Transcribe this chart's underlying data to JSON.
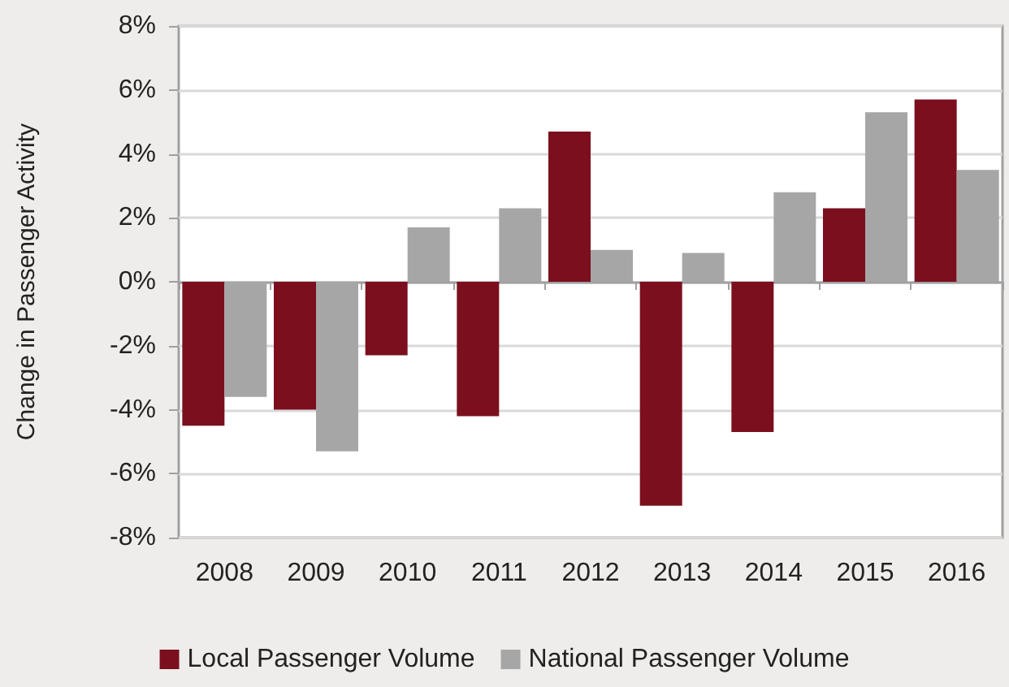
{
  "chart_data": {
    "type": "bar",
    "ylabel": "Change in Passenger Activity",
    "categories": [
      "2008",
      "2009",
      "2010",
      "2011",
      "2012",
      "2013",
      "2014",
      "2015",
      "2016"
    ],
    "series": [
      {
        "name": "Local Passenger Volume",
        "color": "#7b0f1e",
        "values": [
          -4.5,
          -4.0,
          -2.3,
          -4.2,
          4.7,
          -7.0,
          -4.7,
          2.3,
          5.7
        ]
      },
      {
        "name": "National Passenger Volume",
        "color": "#a6a6a6",
        "values": [
          -3.6,
          -5.3,
          1.7,
          2.3,
          1.0,
          0.9,
          2.8,
          5.3,
          3.5
        ]
      }
    ],
    "ylim": [
      -8,
      8
    ],
    "yticks": [
      {
        "value": -8,
        "label": "-8%"
      },
      {
        "value": -6,
        "label": "-6%"
      },
      {
        "value": -4,
        "label": "-4%"
      },
      {
        "value": -2,
        "label": "-2%"
      },
      {
        "value": 0,
        "label": "0%"
      },
      {
        "value": 2,
        "label": "2%"
      },
      {
        "value": 4,
        "label": "4%"
      },
      {
        "value": 6,
        "label": "6%"
      },
      {
        "value": 8,
        "label": "8%"
      }
    ],
    "grid": "y",
    "legend": "bottom"
  }
}
